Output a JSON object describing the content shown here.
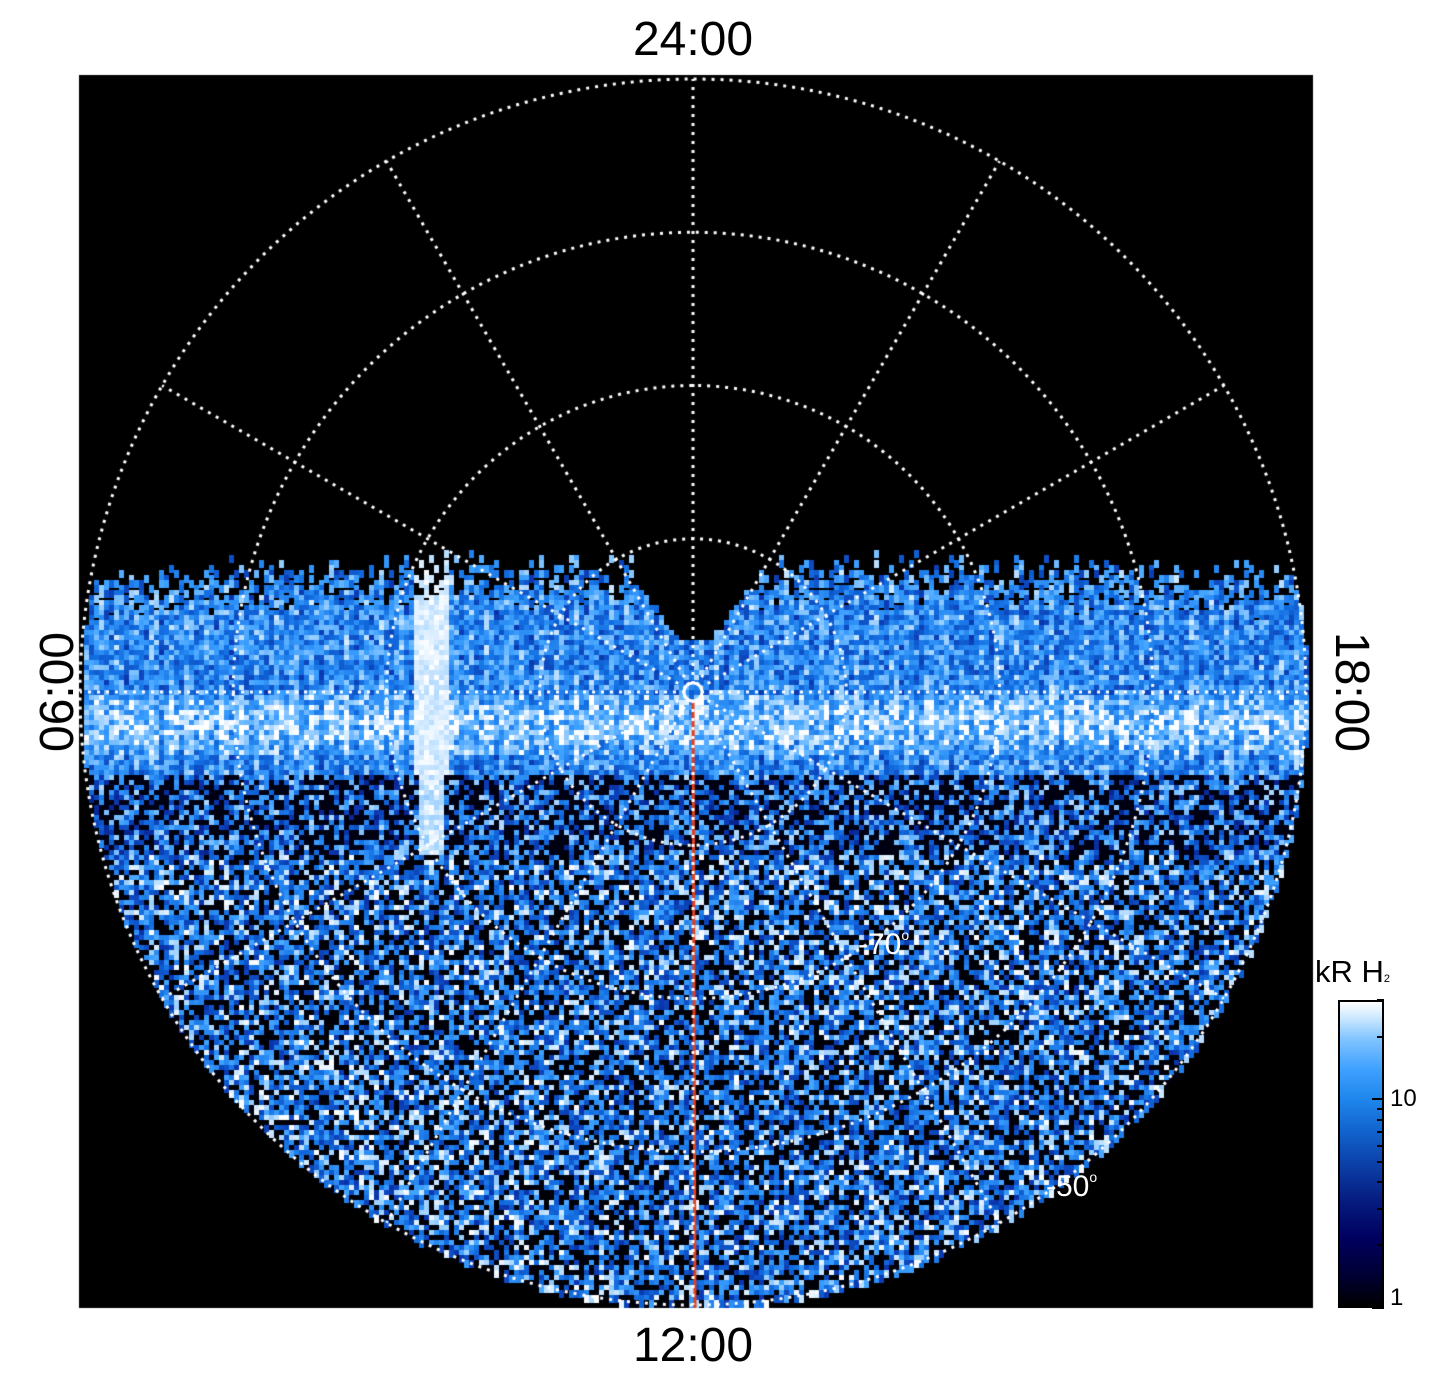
{
  "figure": {
    "local_time_labels": {
      "top": "24:00",
      "bottom": "12:00",
      "left": "06:00",
      "right": "18:00"
    },
    "latitude_labels": {
      "inner": "-70",
      "outer": "-50",
      "degree_symbol": "o"
    },
    "colorbar": {
      "title": "kR H",
      "title_subscript": "2",
      "scale": "log",
      "ticks": [
        "1",
        "10"
      ],
      "range": [
        1,
        30
      ],
      "colors": [
        "#000000",
        "#00005e",
        "#1265cf",
        "#3fa1ff",
        "#ffffff"
      ]
    },
    "colors": {
      "background": "#000000",
      "grid": "#ffffff",
      "meridian_line": "#e04020"
    }
  },
  "chart_data": {
    "type": "heatmap",
    "projection": "polar (south pole)",
    "title": "",
    "color_quantity": "kR H2",
    "color_scale": "log",
    "color_range": [
      1,
      30
    ],
    "colorbar_ticks": [
      1,
      10
    ],
    "local_time_axis": {
      "top": "24:00",
      "bottom": "12:00",
      "left": "06:00",
      "right": "18:00"
    },
    "grid": {
      "latitude_circles_deg": [
        -80,
        -70,
        -60,
        -50
      ],
      "latitude_labels_shown": [
        -70,
        -50
      ],
      "meridian_spacing_hours": 2,
      "style": "dotted white"
    },
    "highlighted_meridian_local_time": "12:00",
    "highlighted_meridian_color": "#e04020",
    "data_coverage": "dayside hemisphere fully covered; nightside empty beyond ~-86 deg latitude near midnight",
    "features": [
      "bright emission band near the 06:00-18:00 terminator",
      "bright streak near 05:00 local time",
      "noisy emission across the dayside"
    ]
  }
}
